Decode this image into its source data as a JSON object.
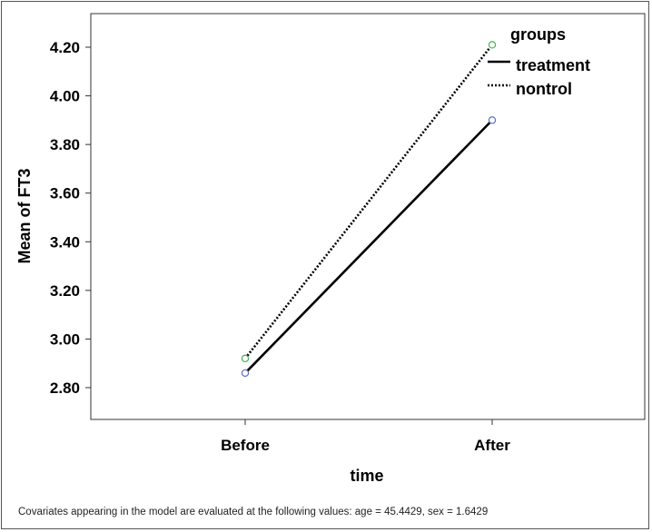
{
  "chart_data": {
    "type": "line",
    "categories": [
      "Before",
      "After"
    ],
    "series": [
      {
        "name": "treatment",
        "values": [
          2.86,
          3.9
        ],
        "line_style": "solid",
        "color": "#000000",
        "marker_color": "#5a6fc8"
      },
      {
        "name": "nontrol",
        "values": [
          2.92,
          4.21
        ],
        "line_style": "dotted",
        "color": "#000000",
        "marker_color": "#4caf50"
      }
    ],
    "title": "",
    "xlabel": "time",
    "ylabel": "Mean of FT3",
    "ylim": [
      2.68,
      4.3
    ],
    "yticks": [
      2.8,
      3.0,
      3.2,
      3.4,
      3.6,
      3.8,
      4.0,
      4.2
    ],
    "ytick_labels": [
      "2.80",
      "3.00",
      "3.20",
      "3.40",
      "3.60",
      "3.80",
      "4.00",
      "4.20"
    ],
    "legend_title": "groups",
    "legend_position": "top-right",
    "grid": false
  },
  "footnote": "Covariates appearing in the model are evaluated at the following values: age = 45.4429, sex = 1.6429"
}
